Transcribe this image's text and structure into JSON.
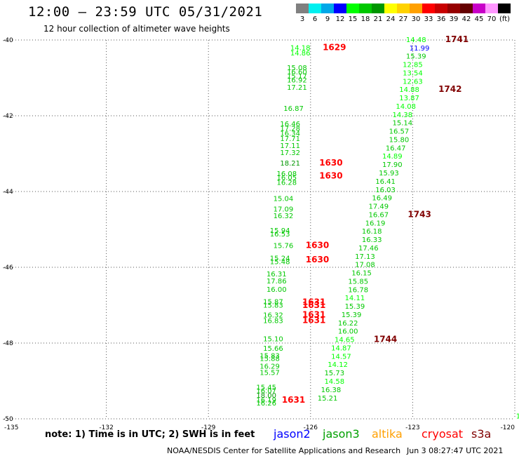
{
  "header": {
    "title": "12:00 – 23:59 UTC 05/31/2021",
    "subtitle": "12 hour collection of altimeter wave heights"
  },
  "legend": {
    "unit": "(ft)",
    "bins": [
      {
        "label": "3",
        "color": "#808080"
      },
      {
        "label": "6",
        "color": "#00f0f0"
      },
      {
        "label": "9",
        "color": "#00a8e8"
      },
      {
        "label": "12",
        "color": "#0000ff"
      },
      {
        "label": "15",
        "color": "#00ff00"
      },
      {
        "label": "18",
        "color": "#00c800"
      },
      {
        "label": "21",
        "color": "#009600"
      },
      {
        "label": "24",
        "color": "#ffff00"
      },
      {
        "label": "27",
        "color": "#ffd200"
      },
      {
        "label": "30",
        "color": "#ffa000"
      },
      {
        "label": "33",
        "color": "#ff0000"
      },
      {
        "label": "36",
        "color": "#c80000"
      },
      {
        "label": "39",
        "color": "#960000"
      },
      {
        "label": "42",
        "color": "#640000"
      },
      {
        "label": "45",
        "color": "#c800c8"
      },
      {
        "label": "70",
        "color": "#ff96ff"
      },
      {
        "label": "",
        "color": "#000000"
      }
    ]
  },
  "footer": {
    "note": "note:  1) Time is in UTC;  2) SWH is in feet",
    "satellites": [
      {
        "name": "jason2",
        "color": "#0000ff"
      },
      {
        "name": "jason3",
        "color": "#00a000"
      },
      {
        "name": "altika",
        "color": "#ffa000"
      },
      {
        "name": "cryosat",
        "color": "#ff0000"
      },
      {
        "name": "s3a",
        "color": "#800000"
      }
    ],
    "credit": "NOAA/NESDIS Center for Satellite Applications and Research",
    "timestamp": "Jun  3 08:27:47 UTC 2021"
  },
  "chart_data": {
    "type": "scatter",
    "xlim": [
      -135,
      -120
    ],
    "ylim": [
      -50,
      -40
    ],
    "x_ticks": [
      {
        "v": -135,
        "label": "-135"
      },
      {
        "v": -132,
        "label": "-132"
      },
      {
        "v": -129,
        "label": "-129"
      },
      {
        "v": -126,
        "label": "-126"
      },
      {
        "v": -123,
        "label": "-123"
      },
      {
        "v": -120,
        "label": "-120"
      }
    ],
    "y_ticks": [
      {
        "v": -40,
        "label": "-40"
      },
      {
        "v": -42,
        "label": "-42"
      },
      {
        "v": -44,
        "label": "-44"
      },
      {
        "v": -46,
        "label": "-46"
      },
      {
        "v": -48,
        "label": "-48"
      },
      {
        "v": -50,
        "label": "-50"
      }
    ],
    "grid": true,
    "track_west": [
      {
        "lon": -126.3,
        "lat": -40.19,
        "swh": "14.18",
        "c": "#00ff00"
      },
      {
        "lon": -126.3,
        "lat": -40.33,
        "swh": "14.86",
        "c": "#00ff00"
      },
      {
        "lon": -126.4,
        "lat": -40.72,
        "swh": "15.08",
        "c": "#00c800"
      },
      {
        "lon": -126.4,
        "lat": -40.83,
        "swh": "16.60",
        "c": "#00c800"
      },
      {
        "lon": -126.4,
        "lat": -40.94,
        "swh": "15.17",
        "c": "#00c800"
      },
      {
        "lon": -126.4,
        "lat": -41.05,
        "swh": "16.92",
        "c": "#00c800"
      },
      {
        "lon": -126.4,
        "lat": -41.24,
        "swh": "17.21",
        "c": "#00c800"
      },
      {
        "lon": -126.5,
        "lat": -41.8,
        "swh": "16.87",
        "c": "#00c800"
      },
      {
        "lon": -126.6,
        "lat": -42.2,
        "swh": "16.46",
        "c": "#00c800"
      },
      {
        "lon": -126.6,
        "lat": -42.32,
        "swh": "17.28",
        "c": "#00c800"
      },
      {
        "lon": -126.6,
        "lat": -42.45,
        "swh": "16.34",
        "c": "#00c800"
      },
      {
        "lon": -126.6,
        "lat": -42.59,
        "swh": "17.71",
        "c": "#00c800"
      },
      {
        "lon": -126.6,
        "lat": -42.78,
        "swh": "17.11",
        "c": "#00c800"
      },
      {
        "lon": -126.6,
        "lat": -42.96,
        "swh": "17.32",
        "c": "#00c800"
      },
      {
        "lon": -126.6,
        "lat": -43.24,
        "swh": "18.21",
        "c": "#009600"
      },
      {
        "lon": -126.7,
        "lat": -43.52,
        "swh": "16.08",
        "c": "#00c800"
      },
      {
        "lon": -126.7,
        "lat": -43.62,
        "swh": "16.05",
        "c": "#00c800"
      },
      {
        "lon": -126.7,
        "lat": -43.75,
        "swh": "16.28",
        "c": "#00c800"
      },
      {
        "lon": -126.8,
        "lat": -44.18,
        "swh": "15.04",
        "c": "#00c800"
      },
      {
        "lon": -126.8,
        "lat": -44.45,
        "swh": "17.09",
        "c": "#00c800"
      },
      {
        "lon": -126.8,
        "lat": -44.63,
        "swh": "16.32",
        "c": "#00c800"
      },
      {
        "lon": -126.9,
        "lat": -45.02,
        "swh": "15.94",
        "c": "#00c800"
      },
      {
        "lon": -126.9,
        "lat": -45.11,
        "swh": "16.53",
        "c": "#00c800"
      },
      {
        "lon": -126.8,
        "lat": -45.42,
        "swh": "15.76",
        "c": "#00c800"
      },
      {
        "lon": -126.9,
        "lat": -45.75,
        "swh": "15.24",
        "c": "#00c800"
      },
      {
        "lon": -126.9,
        "lat": -45.84,
        "swh": "15.48",
        "c": "#00c800"
      },
      {
        "lon": -127.0,
        "lat": -46.17,
        "swh": "16.31",
        "c": "#00c800"
      },
      {
        "lon": -127.0,
        "lat": -46.35,
        "swh": "17.86",
        "c": "#00c800"
      },
      {
        "lon": -127.0,
        "lat": -46.57,
        "swh": "16.00",
        "c": "#00c800"
      },
      {
        "lon": -127.1,
        "lat": -46.9,
        "swh": "15.87",
        "c": "#00c800"
      },
      {
        "lon": -127.1,
        "lat": -46.99,
        "swh": "15.83",
        "c": "#00c800"
      },
      {
        "lon": -127.1,
        "lat": -47.25,
        "swh": "16.32",
        "c": "#00c800"
      },
      {
        "lon": -127.1,
        "lat": -47.4,
        "swh": "16.83",
        "c": "#00c800"
      },
      {
        "lon": -127.1,
        "lat": -47.88,
        "swh": "15.10",
        "c": "#00c800"
      },
      {
        "lon": -127.1,
        "lat": -48.13,
        "swh": "15.66",
        "c": "#00c800"
      },
      {
        "lon": -127.2,
        "lat": -48.32,
        "swh": "15.83",
        "c": "#00c800"
      },
      {
        "lon": -127.2,
        "lat": -48.4,
        "swh": "15.88",
        "c": "#00c800"
      },
      {
        "lon": -127.2,
        "lat": -48.6,
        "swh": "16.29",
        "c": "#00c800"
      },
      {
        "lon": -127.2,
        "lat": -48.77,
        "swh": "15.57",
        "c": "#00c800"
      },
      {
        "lon": -127.3,
        "lat": -49.16,
        "swh": "15.45",
        "c": "#00c800"
      },
      {
        "lon": -127.3,
        "lat": -49.25,
        "swh": "16.07",
        "c": "#00c800"
      },
      {
        "lon": -127.3,
        "lat": -49.37,
        "swh": "18.00",
        "c": "#009600"
      },
      {
        "lon": -127.3,
        "lat": -49.49,
        "swh": "16.19",
        "c": "#00c800"
      },
      {
        "lon": -127.3,
        "lat": -49.57,
        "swh": "16.26",
        "c": "#00c800"
      }
    ],
    "track_east": [
      {
        "lon": -122.9,
        "lat": -39.98,
        "swh": "14.48",
        "c": "#00ff00"
      },
      {
        "lon": -122.8,
        "lat": -40.2,
        "swh": "11.99",
        "c": "#0000ff"
      },
      {
        "lon": -122.9,
        "lat": -40.42,
        "swh": "15.39",
        "c": "#00c800"
      },
      {
        "lon": -123.0,
        "lat": -40.64,
        "swh": "12.85",
        "c": "#00ff00"
      },
      {
        "lon": -123.0,
        "lat": -40.86,
        "swh": "13.54",
        "c": "#00ff00"
      },
      {
        "lon": -123.0,
        "lat": -41.08,
        "swh": "12.63",
        "c": "#00ff00"
      },
      {
        "lon": -123.1,
        "lat": -41.3,
        "swh": "14.88",
        "c": "#00ff00"
      },
      {
        "lon": -123.1,
        "lat": -41.52,
        "swh": "13.87",
        "c": "#00ff00"
      },
      {
        "lon": -123.2,
        "lat": -41.74,
        "swh": "14.08",
        "c": "#00ff00"
      },
      {
        "lon": -123.3,
        "lat": -41.96,
        "swh": "14.38",
        "c": "#00ff00"
      },
      {
        "lon": -123.3,
        "lat": -42.18,
        "swh": "15.14",
        "c": "#00c800"
      },
      {
        "lon": -123.4,
        "lat": -42.4,
        "swh": "16.57",
        "c": "#00c800"
      },
      {
        "lon": -123.4,
        "lat": -42.62,
        "swh": "15.80",
        "c": "#00c800"
      },
      {
        "lon": -123.5,
        "lat": -42.84,
        "swh": "16.47",
        "c": "#00c800"
      },
      {
        "lon": -123.6,
        "lat": -43.06,
        "swh": "14.89",
        "c": "#00ff00"
      },
      {
        "lon": -123.6,
        "lat": -43.28,
        "swh": "17.90",
        "c": "#00c800"
      },
      {
        "lon": -123.7,
        "lat": -43.5,
        "swh": "15.93",
        "c": "#00c800"
      },
      {
        "lon": -123.8,
        "lat": -43.72,
        "swh": "16.41",
        "c": "#00c800"
      },
      {
        "lon": -123.8,
        "lat": -43.94,
        "swh": "16.03",
        "c": "#00c800"
      },
      {
        "lon": -123.9,
        "lat": -44.16,
        "swh": "16.49",
        "c": "#00c800"
      },
      {
        "lon": -124.0,
        "lat": -44.38,
        "swh": "17.49",
        "c": "#00c800"
      },
      {
        "lon": -124.0,
        "lat": -44.6,
        "swh": "16.67",
        "c": "#00c800"
      },
      {
        "lon": -124.1,
        "lat": -44.82,
        "swh": "16.19",
        "c": "#00c800"
      },
      {
        "lon": -124.2,
        "lat": -45.04,
        "swh": "16.18",
        "c": "#00c800"
      },
      {
        "lon": -124.2,
        "lat": -45.26,
        "swh": "16.33",
        "c": "#00c800"
      },
      {
        "lon": -124.3,
        "lat": -45.48,
        "swh": "17.46",
        "c": "#00c800"
      },
      {
        "lon": -124.4,
        "lat": -45.7,
        "swh": "17.13",
        "c": "#00c800"
      },
      {
        "lon": -124.4,
        "lat": -45.92,
        "swh": "17.08",
        "c": "#00c800"
      },
      {
        "lon": -124.5,
        "lat": -46.14,
        "swh": "16.15",
        "c": "#00c800"
      },
      {
        "lon": -124.6,
        "lat": -46.36,
        "swh": "15.85",
        "c": "#00c800"
      },
      {
        "lon": -124.6,
        "lat": -46.58,
        "swh": "16.78",
        "c": "#00c800"
      },
      {
        "lon": -124.7,
        "lat": -46.8,
        "swh": "14.11",
        "c": "#00ff00"
      },
      {
        "lon": -124.7,
        "lat": -47.02,
        "swh": "15.39",
        "c": "#00c800"
      },
      {
        "lon": -124.8,
        "lat": -47.24,
        "swh": "15.39",
        "c": "#00c800"
      },
      {
        "lon": -124.9,
        "lat": -47.46,
        "swh": "16.22",
        "c": "#00c800"
      },
      {
        "lon": -124.9,
        "lat": -47.68,
        "swh": "16.00",
        "c": "#00c800"
      },
      {
        "lon": -125.0,
        "lat": -47.9,
        "swh": "14.65",
        "c": "#00ff00"
      },
      {
        "lon": -125.1,
        "lat": -48.12,
        "swh": "14.87",
        "c": "#00ff00"
      },
      {
        "lon": -125.1,
        "lat": -48.34,
        "swh": "14.57",
        "c": "#00ff00"
      },
      {
        "lon": -125.2,
        "lat": -48.56,
        "swh": "14.12",
        "c": "#00ff00"
      },
      {
        "lon": -125.3,
        "lat": -48.78,
        "swh": "15.73",
        "c": "#00c800"
      },
      {
        "lon": -125.3,
        "lat": -49.0,
        "swh": "14.58",
        "c": "#00ff00"
      },
      {
        "lon": -125.4,
        "lat": -49.22,
        "swh": "16.38",
        "c": "#00c800"
      },
      {
        "lon": -125.5,
        "lat": -49.44,
        "swh": "15.21",
        "c": "#00c800"
      }
    ],
    "edge_label": {
      "lon": -119.8,
      "lat": -49.92,
      "swh": "13.",
      "c": "#00ff00"
    },
    "time_labels": [
      {
        "lon": -125.3,
        "lat": -40.19,
        "label": "1629",
        "c": "#ff0000"
      },
      {
        "lon": -125.4,
        "lat": -43.24,
        "label": "1630",
        "c": "#ff0000"
      },
      {
        "lon": -125.4,
        "lat": -43.58,
        "label": "1630",
        "c": "#ff0000"
      },
      {
        "lon": -125.8,
        "lat": -45.42,
        "label": "1630",
        "c": "#ff0000"
      },
      {
        "lon": -125.8,
        "lat": -45.8,
        "label": "1630",
        "c": "#ff0000"
      },
      {
        "lon": -125.9,
        "lat": -46.92,
        "label": "1631",
        "c": "#ff0000"
      },
      {
        "lon": -125.9,
        "lat": -47.0,
        "label": "1631",
        "c": "#ff0000"
      },
      {
        "lon": -125.9,
        "lat": -47.25,
        "label": "1631",
        "c": "#ff0000"
      },
      {
        "lon": -125.9,
        "lat": -47.4,
        "label": "1631",
        "c": "#ff0000"
      },
      {
        "lon": -126.5,
        "lat": -49.5,
        "label": "1631",
        "c": "#ff0000"
      },
      {
        "lon": -121.7,
        "lat": -39.98,
        "label": "1741",
        "c": "#800000"
      },
      {
        "lon": -121.9,
        "lat": -41.3,
        "label": "1742",
        "c": "#800000"
      },
      {
        "lon": -122.8,
        "lat": -44.6,
        "label": "1743",
        "c": "#800000"
      },
      {
        "lon": -123.8,
        "lat": -47.9,
        "label": "1744",
        "c": "#800000"
      }
    ]
  }
}
